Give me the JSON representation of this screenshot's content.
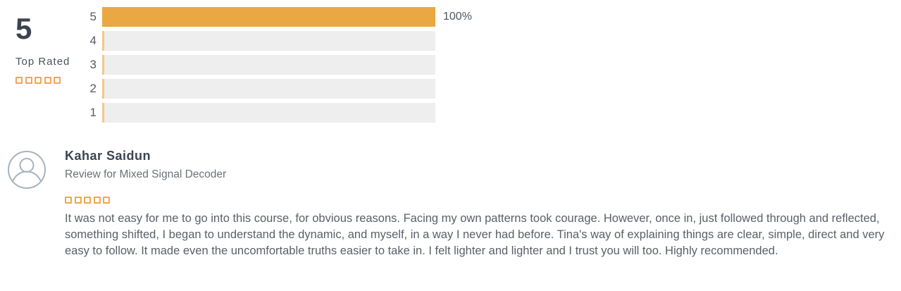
{
  "summary": {
    "score": "5",
    "label": "Top Rated",
    "stars_count": 5
  },
  "chart_data": {
    "type": "bar",
    "orientation": "horizontal",
    "categories": [
      "5",
      "4",
      "3",
      "2",
      "1"
    ],
    "values": [
      100,
      0,
      0,
      0,
      0
    ],
    "value_labels": [
      "100%",
      "",
      "",
      "",
      ""
    ],
    "xlim": [
      0,
      100
    ],
    "title": "",
    "xlabel": "",
    "ylabel": ""
  },
  "review": {
    "author": "Kahar Saidun",
    "subtitle": "Review for Mixed Signal Decoder",
    "stars_count": 5,
    "body": "It was not easy for me to go into this course, for obvious reasons. Facing my own patterns took courage. However, once in, just followed through and reflected, something shifted, I began to understand the dynamic, and myself, in a way I never had before. Tina's way of explaining things are clear, simple, direct and very easy to follow. It made even the uncomfortable truths easier to take in. I felt lighter and lighter and I trust you will too. Highly recommended."
  },
  "colors": {
    "accent_orange": "#EAA843",
    "star_orange": "#F0A848",
    "bar_track_gray": "#EEEEEE",
    "bar_tick_orange": "#F3C886",
    "text_dark": "#3B4450",
    "text_gray": "#6B7178",
    "avatar_stroke": "#A9B2BC"
  }
}
